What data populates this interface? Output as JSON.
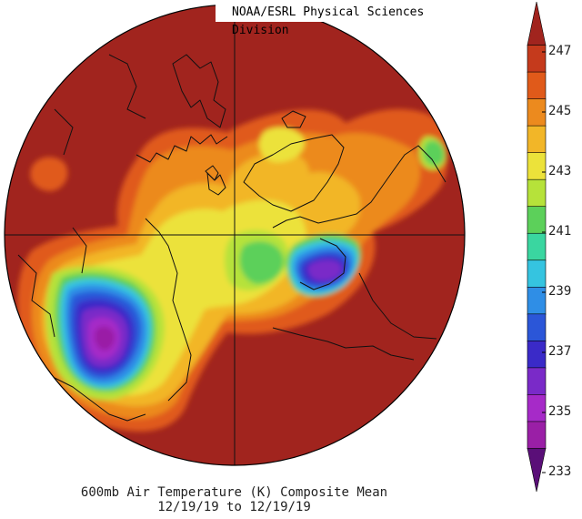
{
  "credit": "NOAA/ESRL Physical Sciences Division",
  "caption": {
    "line1": "600mb Air Temperature (K) Composite Mean",
    "line2": "12/19/19  to 12/19/19"
  },
  "colorbar": {
    "labels": [
      "247",
      "245",
      "243",
      "241",
      "239",
      "237",
      "235",
      "233"
    ],
    "colors": [
      "#a1241e",
      "#c53a1c",
      "#e05a1a",
      "#ec8a1e",
      "#f2b628",
      "#ece23a",
      "#b6e23a",
      "#5cd05a",
      "#3ad6a0",
      "#35c4e0",
      "#2f8ee6",
      "#2b56d8",
      "#3a2ac8",
      "#7a2ac8",
      "#a62ac8",
      "#9a1fa6",
      "#5a0f78"
    ]
  },
  "map": {
    "background_color": "#a1241e",
    "projection": "north-polar-stereographic",
    "grid": true
  }
}
